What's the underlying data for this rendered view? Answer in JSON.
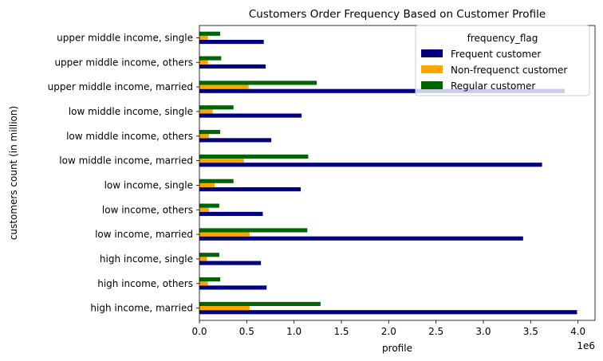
{
  "chart_data": {
    "type": "bar",
    "orientation": "horizontal",
    "title": "Customers Order Frequency Based on Customer Profile",
    "xlabel": "profile",
    "ylabel": "customers count (in million)",
    "x_offset_label": "1e6",
    "xlim": [
      0,
      4.18
    ],
    "x_ticks": [
      0,
      0.5,
      1.0,
      1.5,
      2.0,
      2.5,
      3.0,
      3.5,
      4.0
    ],
    "x_tick_labels": [
      "0.0",
      "0.5",
      "1.0",
      "1.5",
      "2.0",
      "2.5",
      "3.0",
      "3.5",
      "4.0"
    ],
    "grid": false,
    "legend_title": "frequency_flag",
    "legend_position": "top-right",
    "categories": [
      "high income, married",
      "high income, others",
      "high income, single",
      "low income, married",
      "low income, others",
      "low income, single",
      "low middle income, married",
      "low middle income, others",
      "low middle income, single",
      "upper middle income, married",
      "upper middle income, others",
      "upper middle income, single"
    ],
    "series": [
      {
        "name": "Frequent customer",
        "color": "#000080",
        "values": [
          3.99,
          0.71,
          0.65,
          3.42,
          0.67,
          1.07,
          3.62,
          0.76,
          1.08,
          3.86,
          0.7,
          0.68
        ]
      },
      {
        "name": "Non-frequenct customer",
        "color": "#ffa500",
        "values": [
          0.53,
          0.09,
          0.08,
          0.53,
          0.1,
          0.16,
          0.47,
          0.1,
          0.14,
          0.52,
          0.09,
          0.09
        ]
      },
      {
        "name": "Regular customer",
        "color": "#006400",
        "values": [
          1.28,
          0.22,
          0.21,
          1.14,
          0.21,
          0.36,
          1.15,
          0.22,
          0.36,
          1.24,
          0.23,
          0.22
        ]
      }
    ]
  }
}
